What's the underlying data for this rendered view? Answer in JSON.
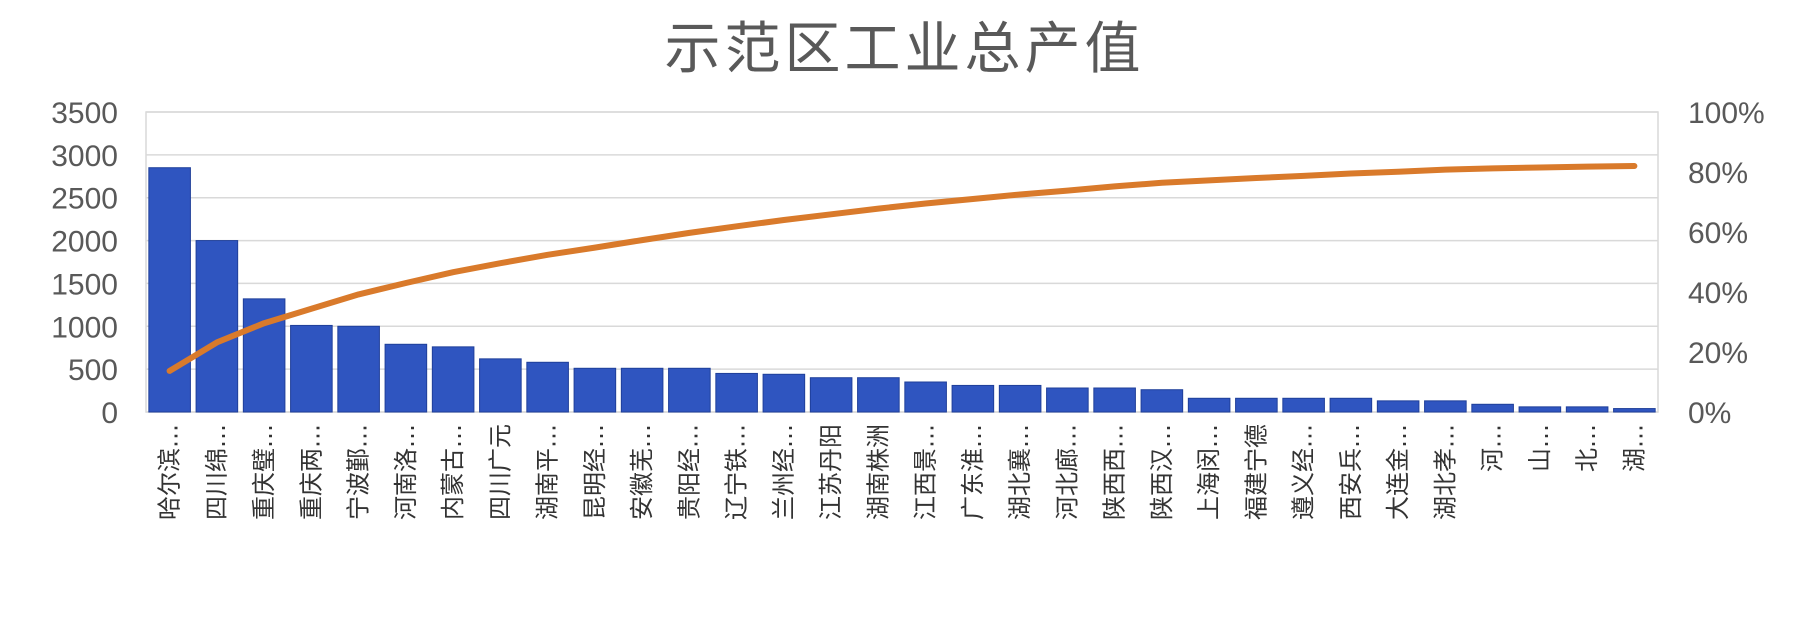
{
  "chart_data": {
    "type": "bar",
    "title": "示范区工业总产值",
    "categories": [
      "哈尔滨…",
      "四川绵…",
      "重庆璧…",
      "重庆两…",
      "宁波鄞…",
      "河南洛…",
      "内蒙古…",
      "四川广元",
      "湖南平…",
      "昆明经…",
      "安徽芜…",
      "贵阳经…",
      "辽宁铁…",
      "兰州经…",
      "江苏丹阳",
      "湖南株洲",
      "江西景…",
      "广东淮…",
      "湖北襄…",
      "河北廊…",
      "陕西西…",
      "陕西汉…",
      "上海闵…",
      "福建宁德",
      "遵义经…",
      "西安兵…",
      "大连金…",
      "湖北孝…",
      "河…",
      "山…",
      "北…",
      "湖…"
    ],
    "series": [
      {
        "type": "bar",
        "values": [
          2850,
          2000,
          1320,
          1010,
          1000,
          790,
          760,
          620,
          580,
          510,
          510,
          510,
          450,
          440,
          400,
          400,
          350,
          310,
          310,
          280,
          280,
          260,
          160,
          160,
          160,
          160,
          130,
          130,
          90,
          60,
          60,
          40
        ],
        "color": "#2f55c0"
      },
      {
        "type": "line",
        "axis": "right",
        "values": [
          13.7,
          23.2,
          29.6,
          34.4,
          39.2,
          43.0,
          46.6,
          49.6,
          52.4,
          54.8,
          57.3,
          59.7,
          61.9,
          64.0,
          65.9,
          67.8,
          69.5,
          71.0,
          72.5,
          73.8,
          75.2,
          76.4,
          77.2,
          78.0,
          78.7,
          79.5,
          80.1,
          80.8,
          81.2,
          81.5,
          81.8,
          82.0
        ],
        "color": "#d97a2b"
      }
    ],
    "left_axis": {
      "ylim": [
        0,
        3500
      ],
      "ticks": [
        "3500",
        "3000",
        "2500",
        "2000",
        "1500",
        "1000",
        "500",
        "0"
      ]
    },
    "right_axis": {
      "ylim": [
        0,
        100
      ],
      "ticks": [
        "100%",
        "80%",
        "60%",
        "40%",
        "20%",
        "0%"
      ]
    },
    "grid": true,
    "legend": "none"
  }
}
